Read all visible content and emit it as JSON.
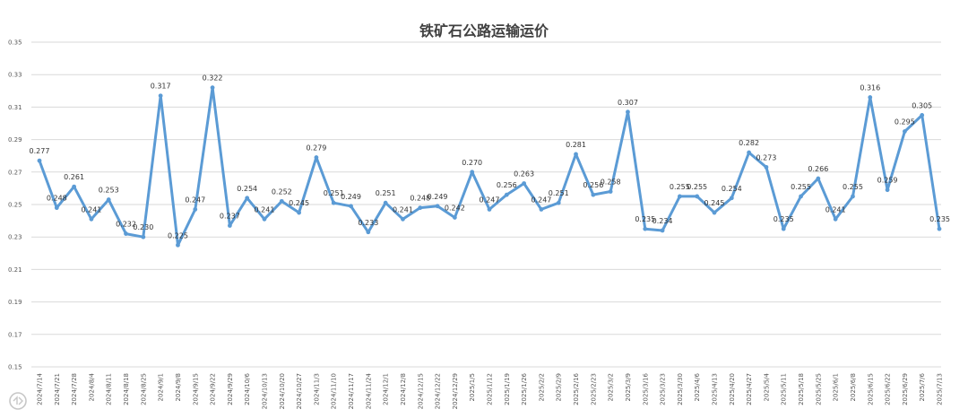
{
  "chart_data": {
    "type": "line",
    "title": "铁矿石公路运输运价",
    "xlabel": "",
    "ylabel": "",
    "ylim": [
      0.15,
      0.35
    ],
    "yticks": [
      "0.35",
      "0.33",
      "0.31",
      "0.29",
      "0.27",
      "0.25",
      "0.23",
      "0.21",
      "0.19",
      "0.17",
      "0.15"
    ],
    "grid": true,
    "legend": "none",
    "color": "#5b9bd5",
    "categories": [
      "2024/7/14",
      "2024/7/21",
      "2024/7/28",
      "2024/8/4",
      "2024/8/11",
      "2024/8/18",
      "2024/8/25",
      "2024/9/1",
      "2024/9/8",
      "2024/9/15",
      "2024/9/22",
      "2024/9/29",
      "2024/10/6",
      "2024/10/13",
      "2024/10/20",
      "2024/10/27",
      "2024/11/3",
      "2024/11/10",
      "2024/11/17",
      "2024/11/24",
      "2024/12/1",
      "2024/12/8",
      "2024/12/15",
      "2024/12/22",
      "2024/12/29",
      "2025/1/5",
      "2025/1/12",
      "2025/1/19",
      "2025/1/26",
      "2025/2/2",
      "2025/2/9",
      "2025/2/16",
      "2025/2/23",
      "2025/3/2",
      "2025/3/9",
      "2025/3/16",
      "2025/3/23",
      "2025/3/30",
      "2025/4/6",
      "2025/4/13",
      "2025/4/20",
      "2025/4/27",
      "2025/5/4",
      "2025/5/11",
      "2025/5/18",
      "2025/5/25",
      "2025/6/1",
      "2025/6/8",
      "2025/6/15",
      "2025/6/22",
      "2025/6/29",
      "2025/7/6",
      "2025/7/13"
    ],
    "series": [
      {
        "values": [
          0.277,
          0.248,
          0.261,
          0.241,
          0.253,
          0.232,
          0.23,
          0.317,
          0.225,
          0.247,
          0.322,
          0.237,
          0.254,
          0.241,
          0.252,
          0.245,
          0.279,
          0.251,
          0.249,
          0.233,
          0.251,
          0.241,
          0.248,
          0.249,
          0.242,
          0.27,
          0.247,
          0.256,
          0.263,
          0.247,
          0.251,
          0.281,
          0.256,
          0.258,
          0.307,
          0.235,
          0.234,
          0.255,
          0.255,
          0.245,
          0.254,
          0.282,
          0.273,
          0.235,
          0.255,
          0.266,
          0.241,
          0.255,
          0.316,
          0.259,
          0.295,
          0.305,
          0.235
        ],
        "labels": [
          "0.277",
          "0.248",
          "0.261",
          "0.241",
          "0.253",
          "0.232",
          "0.230",
          "0.317",
          "0.225",
          "0.247",
          "0.322",
          "0.237",
          "0.254",
          "0.241",
          "0.252",
          "0.245",
          "0.279",
          "0.251",
          "0.249",
          "0.233",
          "0.251",
          "0.241",
          "0.248",
          "0.249",
          "0.242",
          "0.270",
          "0.247",
          "0.256",
          "0.263",
          "0.247",
          "0.251",
          "0.281",
          "0.256",
          "0.258",
          "0.307",
          "0.235",
          "0.234",
          "0.255",
          "0.255",
          "0.245",
          "0.254",
          "0.282",
          "0.273",
          "0.235",
          "0.255",
          "0.266",
          "0.241",
          "0.255",
          "0.316",
          "0.259",
          "0.295",
          "0.305",
          "0.235"
        ]
      }
    ],
    "watermark": "大数跨境"
  }
}
